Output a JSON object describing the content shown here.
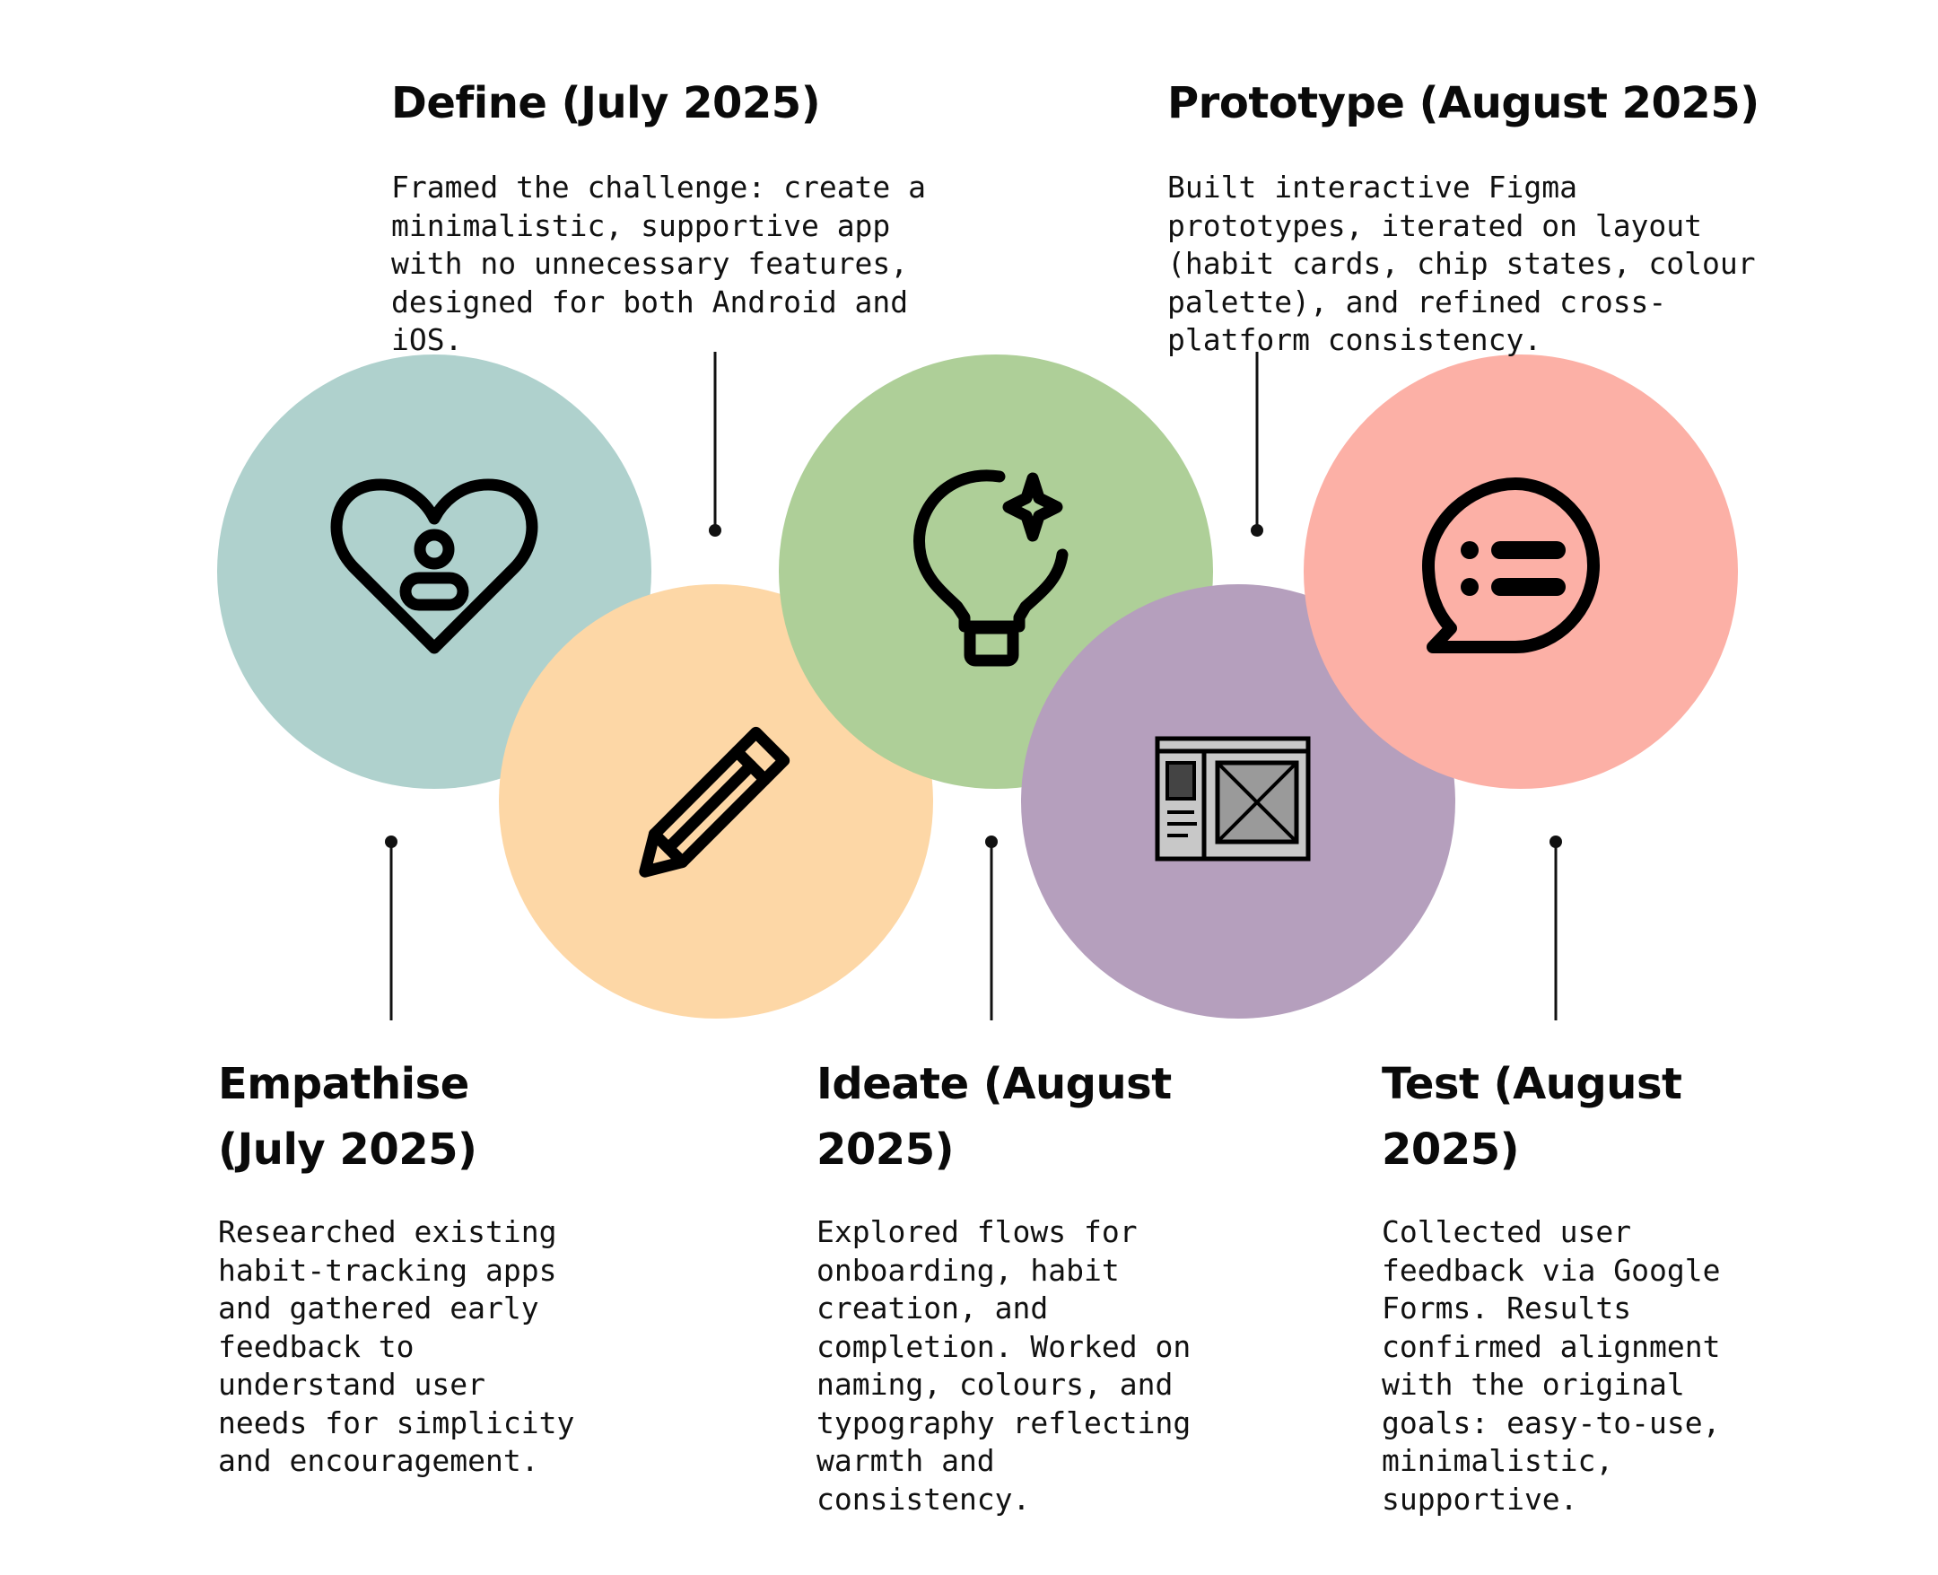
{
  "stages": [
    {
      "id": "empathise",
      "title": "Empathise (July 2025)",
      "description": "Researched existing habit-tracking apps and gathered early feedback to understand user needs for simplicity and encouragement.",
      "color": "#afd1cd",
      "icon": "heart-user-icon"
    },
    {
      "id": "define",
      "title": "Define (July 2025)",
      "description": "Framed the challenge: create a minimalistic, supportive app with no unnecessary features, designed for both Android and iOS.",
      "color": "#fdd7a6",
      "icon": "pencil-icon"
    },
    {
      "id": "ideate",
      "title": "Ideate (August 2025)",
      "description": "Explored flows for onboarding, habit creation, and completion. Worked on naming, colours, and typography reflecting warmth and consistency.",
      "color": "#aecf98",
      "icon": "lightbulb-icon"
    },
    {
      "id": "prototype",
      "title": "Prototype (August 2025)",
      "description": "Built interactive Figma prototypes, iterated on layout (habit cards, chip states, colour palette), and refined cross-platform consistency.",
      "color": "#b59fbd",
      "icon": "wireframe-icon"
    },
    {
      "id": "test",
      "title": "Test (August 2025)",
      "description": "Collected user feedback via Google Forms. Results confirmed alignment with the original goals: easy-to-use, minimalistic, supportive.",
      "color": "#fcb0a6",
      "icon": "chat-bubble-icon"
    }
  ]
}
